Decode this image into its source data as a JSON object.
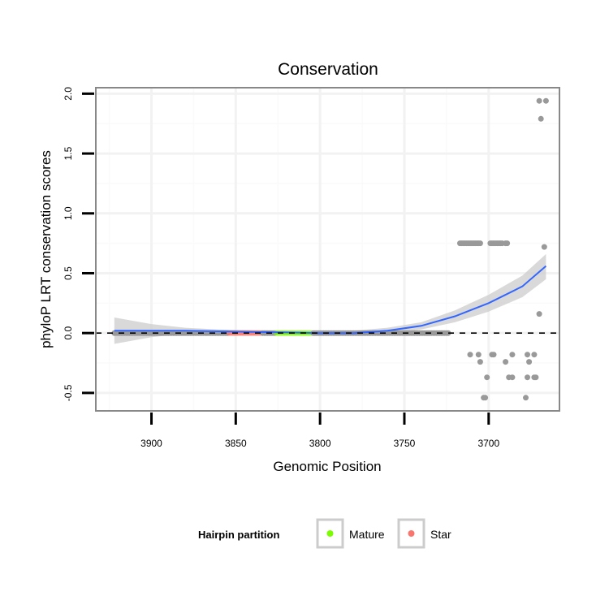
{
  "chart_data": {
    "type": "scatter",
    "title": "Conservation",
    "xlabel": "Genomic Position",
    "ylabel": "phyloP LRT conservation scores",
    "x_reversed": true,
    "xlim": [
      3933,
      3658
    ],
    "ylim": [
      -0.65,
      2.05
    ],
    "x_ticks": [
      3900,
      3850,
      3800,
      3750,
      3700
    ],
    "x_tick_labels": [
      "3900",
      "3850",
      "3800",
      "3750",
      "3700"
    ],
    "y_ticks": [
      -0.5,
      0.0,
      0.5,
      1.0,
      1.5,
      2.0
    ],
    "y_tick_labels": [
      "-0.5",
      "0.0",
      "0.5",
      "1.0",
      "1.5",
      "2.0"
    ],
    "grid": true,
    "reference_line": {
      "y": 0,
      "style": "dashed"
    },
    "colors": {
      "other": "#999999",
      "mature": "#7cfc00",
      "star": "#f8766d",
      "smooth": "#3366ff",
      "band": "#cccccc",
      "panel_border": "#888888"
    },
    "legend": {
      "title": "Hairpin partition",
      "position": "bottom",
      "entries": [
        {
          "label": "Mature",
          "color": "#7cfc00"
        },
        {
          "label": "Star",
          "color": "#f8766d"
        }
      ]
    },
    "zero_region": {
      "x_start": 3922,
      "x_end": 3724,
      "y": 0.0
    },
    "mature_region": {
      "x_start": 3826,
      "x_end": 3805
    },
    "star_region": {
      "x_start": 3854,
      "x_end": 3835
    },
    "scatter_points": [
      {
        "x": 3717,
        "y": 0.75
      },
      {
        "x": 3716,
        "y": 0.75
      },
      {
        "x": 3715,
        "y": 0.75
      },
      {
        "x": 3714,
        "y": 0.75
      },
      {
        "x": 3713,
        "y": 0.75
      },
      {
        "x": 3712,
        "y": 0.75
      },
      {
        "x": 3711,
        "y": 0.75
      },
      {
        "x": 3710,
        "y": 0.75
      },
      {
        "x": 3709,
        "y": 0.75
      },
      {
        "x": 3708,
        "y": 0.75
      },
      {
        "x": 3707,
        "y": 0.75
      },
      {
        "x": 3706,
        "y": 0.75
      },
      {
        "x": 3705,
        "y": 0.75
      },
      {
        "x": 3699,
        "y": 0.75
      },
      {
        "x": 3698,
        "y": 0.75
      },
      {
        "x": 3697,
        "y": 0.75
      },
      {
        "x": 3696,
        "y": 0.75
      },
      {
        "x": 3695,
        "y": 0.75
      },
      {
        "x": 3694,
        "y": 0.75
      },
      {
        "x": 3693,
        "y": 0.75
      },
      {
        "x": 3692,
        "y": 0.75
      },
      {
        "x": 3690,
        "y": 0.75
      },
      {
        "x": 3689,
        "y": 0.75
      },
      {
        "x": 3711,
        "y": -0.18
      },
      {
        "x": 3706,
        "y": -0.18
      },
      {
        "x": 3698,
        "y": -0.18
      },
      {
        "x": 3697,
        "y": -0.18
      },
      {
        "x": 3686,
        "y": -0.18
      },
      {
        "x": 3677,
        "y": -0.18
      },
      {
        "x": 3673,
        "y": -0.18
      },
      {
        "x": 3705,
        "y": -0.24
      },
      {
        "x": 3690,
        "y": -0.24
      },
      {
        "x": 3676,
        "y": -0.24
      },
      {
        "x": 3701,
        "y": -0.37
      },
      {
        "x": 3688,
        "y": -0.37
      },
      {
        "x": 3686,
        "y": -0.37
      },
      {
        "x": 3677,
        "y": -0.37
      },
      {
        "x": 3673,
        "y": -0.37
      },
      {
        "x": 3672,
        "y": -0.37
      },
      {
        "x": 3703,
        "y": -0.54
      },
      {
        "x": 3702,
        "y": -0.54
      },
      {
        "x": 3678,
        "y": -0.54
      },
      {
        "x": 3670,
        "y": 0.16
      },
      {
        "x": 3667,
        "y": 0.72
      },
      {
        "x": 3669,
        "y": 1.79
      },
      {
        "x": 3670,
        "y": 1.94
      },
      {
        "x": 3666,
        "y": 1.94
      }
    ],
    "smooth_line": [
      {
        "x": 3922,
        "y": 0.02,
        "lower": -0.09,
        "upper": 0.13
      },
      {
        "x": 3900,
        "y": 0.02,
        "lower": -0.035,
        "upper": 0.075
      },
      {
        "x": 3880,
        "y": 0.02,
        "lower": -0.005,
        "upper": 0.045
      },
      {
        "x": 3860,
        "y": 0.015,
        "lower": 0.0,
        "upper": 0.03
      },
      {
        "x": 3840,
        "y": 0.01,
        "lower": -0.005,
        "upper": 0.025
      },
      {
        "x": 3820,
        "y": 0.005,
        "lower": -0.01,
        "upper": 0.02
      },
      {
        "x": 3800,
        "y": 0.0,
        "lower": -0.015,
        "upper": 0.015
      },
      {
        "x": 3780,
        "y": 0.0,
        "lower": -0.02,
        "upper": 0.02
      },
      {
        "x": 3760,
        "y": 0.02,
        "lower": -0.005,
        "upper": 0.045
      },
      {
        "x": 3740,
        "y": 0.06,
        "lower": 0.03,
        "upper": 0.09
      },
      {
        "x": 3720,
        "y": 0.14,
        "lower": 0.09,
        "upper": 0.19
      },
      {
        "x": 3700,
        "y": 0.25,
        "lower": 0.18,
        "upper": 0.32
      },
      {
        "x": 3680,
        "y": 0.39,
        "lower": 0.3,
        "upper": 0.48
      },
      {
        "x": 3666,
        "y": 0.56,
        "lower": 0.45,
        "upper": 0.66
      }
    ]
  }
}
